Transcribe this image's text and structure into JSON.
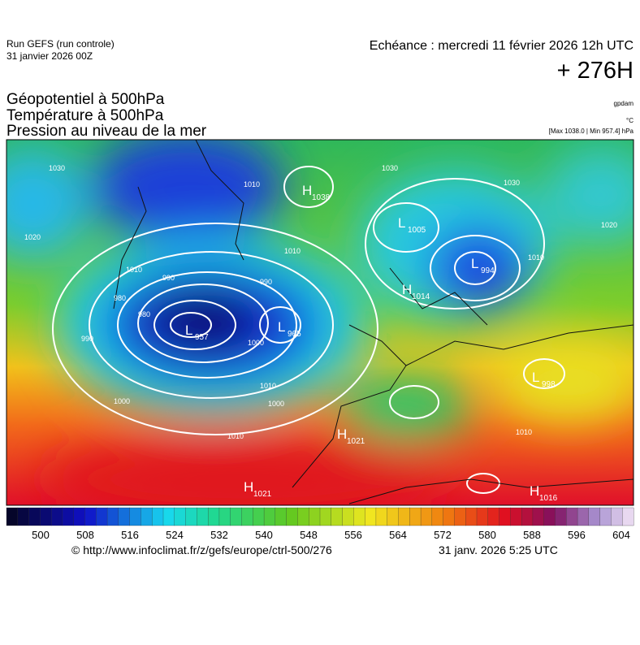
{
  "header": {
    "run": "Run GEFS (run controle)",
    "run_date": "31 janvier 2026 00Z",
    "echeance": "Echéance : mercredi 11 février 2026 12h UTC",
    "lead": "+ 276H"
  },
  "titles": [
    "Géopotentiel à 500hPa",
    "Température à 500hPa",
    "Pression au niveau de la mer"
  ],
  "units": {
    "geopotential": "gpdam",
    "temperature": "°C",
    "pressure": "[Max 1038.0 | Min 957.4] hPa"
  },
  "centers": [
    {
      "type": "L",
      "value": "957"
    },
    {
      "type": "L",
      "value": "965"
    },
    {
      "type": "H",
      "value": "1038"
    },
    {
      "type": "L",
      "value": "1005"
    },
    {
      "type": "L",
      "value": "994"
    },
    {
      "type": "H",
      "value": "1014"
    },
    {
      "type": "L",
      "value": "998"
    },
    {
      "type": "H",
      "value": "1021"
    },
    {
      "type": "H",
      "value": "1021"
    },
    {
      "type": "H",
      "value": "1016"
    }
  ],
  "isobar_labels": [
    "1030",
    "1020",
    "1010",
    "990",
    "980",
    "990",
    "1000",
    "1010",
    "1000",
    "1010",
    "1030",
    "1030",
    "1010",
    "1020",
    "1010",
    "1010",
    "1000",
    "990",
    "980",
    "1010"
  ],
  "colorbar": {
    "ticks": [
      500,
      508,
      516,
      524,
      532,
      540,
      548,
      556,
      564,
      572,
      580,
      588,
      596,
      604
    ]
  },
  "footer": {
    "url": "© http://www.infoclimat.fr/z/gefs/europe/ctrl-500/276",
    "time": "31 janv. 2026  5:25 UTC"
  }
}
